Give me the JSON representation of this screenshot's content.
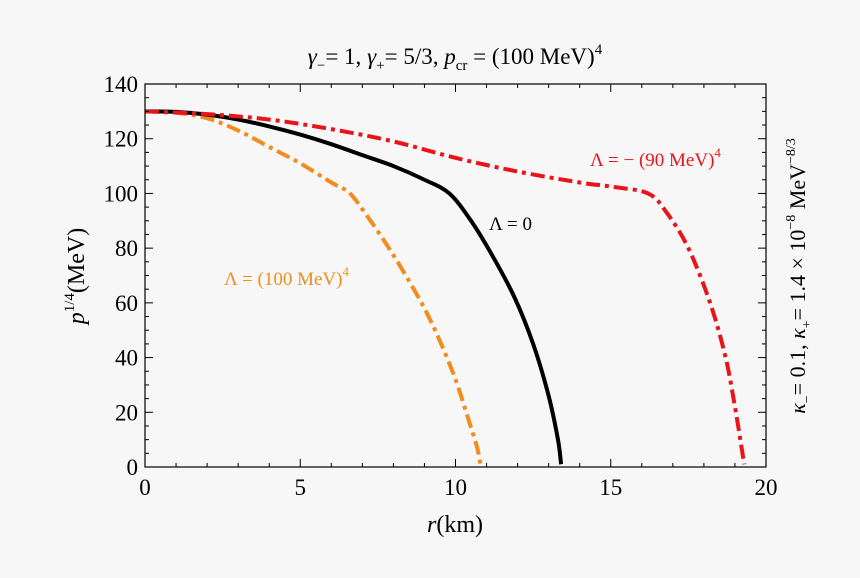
{
  "chart_data": {
    "type": "line",
    "title": "γ₋= 1, γ₊= 5/3, p꜀ᵣ = (100 MeV)⁴",
    "title_parts": {
      "t1": "γ",
      "t1s": "−",
      "t2": "= 1, ",
      "t3": "γ",
      "t3s": "+",
      "t4": "= 5/3, ",
      "t5": "p",
      "t5s": "cr",
      "t6": " = (100 MeV)",
      "t6p": "4"
    },
    "xlabel": "r(km)",
    "xlabel_parts": {
      "var": "r",
      "unit": "(km)"
    },
    "ylabel": "p^1/4(MeV)",
    "ylabel_parts": {
      "var": "p",
      "exp": "1/4",
      "unit": "(MeV)"
    },
    "side_label": "κ₋= 0.1, κ₊= 1.4 × 10⁻⁸ MeV⁻⁸ᐟ³",
    "side_parts": {
      "k1": "κ",
      "k1s": "−",
      "k1v": "= 0.1, ",
      "k2": "κ",
      "k2s": "+",
      "k2v": "= 1.4 × 10",
      "k2e": "−8",
      "unit": " MeV",
      "unitp": "−8/3"
    },
    "xlim": [
      0,
      20
    ],
    "ylim": [
      0,
      140
    ],
    "xticks": [
      0,
      5,
      10,
      15,
      20
    ],
    "yticks": [
      0,
      20,
      40,
      60,
      80,
      100,
      120,
      140
    ],
    "xtick_labels": [
      "0",
      "5",
      "10",
      "15",
      "20"
    ],
    "ytick_labels": [
      "0",
      "20",
      "40",
      "60",
      "80",
      "100",
      "120",
      "140"
    ],
    "grid": false,
    "series": [
      {
        "name": "Λ = (100 MeV)⁴",
        "label_parts": {
          "main": "Λ = (100 MeV)",
          "sup": "4"
        },
        "color": "#f28c1c",
        "dash": "dot-dash",
        "x": [
          0,
          1,
          2,
          3,
          4,
          5,
          6,
          6.6,
          7.2,
          7.8,
          8.4,
          9.0,
          9.5,
          10.0,
          10.4,
          10.7,
          10.8
        ],
        "y": [
          130,
          129.5,
          127.5,
          123,
          117,
          111,
          104,
          100,
          91,
          81,
          70,
          58,
          46,
          32,
          18,
          7,
          1
        ]
      },
      {
        "name": "Λ = 0",
        "label_parts": {
          "main": "Λ = 0",
          "sup": ""
        },
        "color": "#000000",
        "dash": "solid",
        "x": [
          0,
          1,
          2,
          3,
          4,
          5,
          6,
          7,
          8,
          9,
          9.8,
          10.5,
          11.2,
          11.9,
          12.5,
          13.0,
          13.3,
          13.4
        ],
        "y": [
          130,
          129.8,
          128.8,
          127,
          124.5,
          121.5,
          118,
          114,
          110,
          105,
          100,
          90,
          77,
          62,
          45,
          26,
          10,
          1
        ]
      },
      {
        "name": "Λ = − (90 MeV)⁴",
        "label_parts": {
          "main": "Λ = − (90 MeV)",
          "sup": "4"
        },
        "color": "#e8141a",
        "dash": "dot-dash",
        "x": [
          0,
          2,
          4,
          6,
          8,
          10,
          12,
          14,
          15,
          16.2,
          16.8,
          17.5,
          18.2,
          18.7,
          19.0,
          19.2,
          19.3
        ],
        "y": [
          130,
          129,
          127,
          123.5,
          119,
          113,
          108,
          104,
          102.5,
          100,
          93,
          80,
          60,
          40,
          22,
          8,
          1
        ]
      }
    ]
  }
}
